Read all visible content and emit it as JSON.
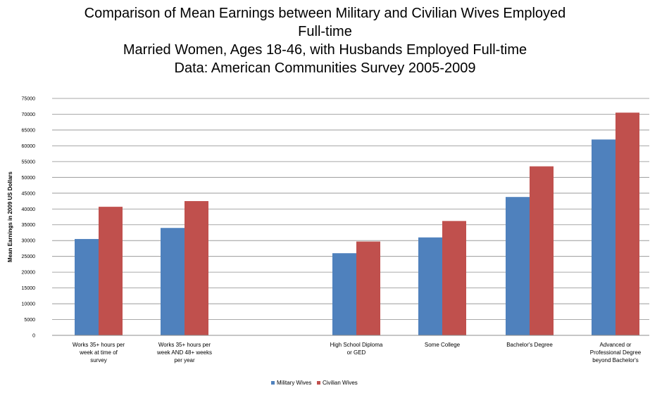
{
  "chart_data": {
    "type": "bar",
    "title_lines": [
      "Comparison of Mean Earnings between Military and Civilian Wives Employed",
      "Full-time",
      "Married Women, Ages 18-46, with Husbands Employed Full-time",
      "Data: American Communities Survey 2005-2009"
    ],
    "ylabel": "Mean Earnings in 2009 US Dollars",
    "xlabel": "",
    "ylim": [
      0,
      75000
    ],
    "yticks": [
      "0",
      "5000",
      "10000",
      "15000",
      "20000",
      "25000",
      "30000",
      "35000",
      "40000",
      "45000",
      "50000",
      "55000",
      "60000",
      "65000",
      "70000",
      "75000"
    ],
    "grid": true,
    "legend_position": "bottom",
    "categories": [
      [
        "Works 35+ hours per",
        "week at time of",
        "survey"
      ],
      [
        "Works 35+ hours per",
        "week AND 48+ weeks",
        "per year"
      ],
      [],
      [
        "High School Diploma",
        "or GED"
      ],
      [
        "Some College"
      ],
      [
        "Bachelor's Degree"
      ],
      [
        "Advanced or",
        "Professional Degree",
        "beyond Bachelor's"
      ]
    ],
    "series": [
      {
        "name": "Military Wives",
        "color": "#4f81bd",
        "values": [
          30500,
          34000,
          null,
          26000,
          31000,
          43800,
          62000
        ]
      },
      {
        "name": "Civilian Wives",
        "color": "#c0504d",
        "values": [
          40700,
          42500,
          null,
          29700,
          36200,
          53500,
          70500
        ]
      }
    ]
  }
}
